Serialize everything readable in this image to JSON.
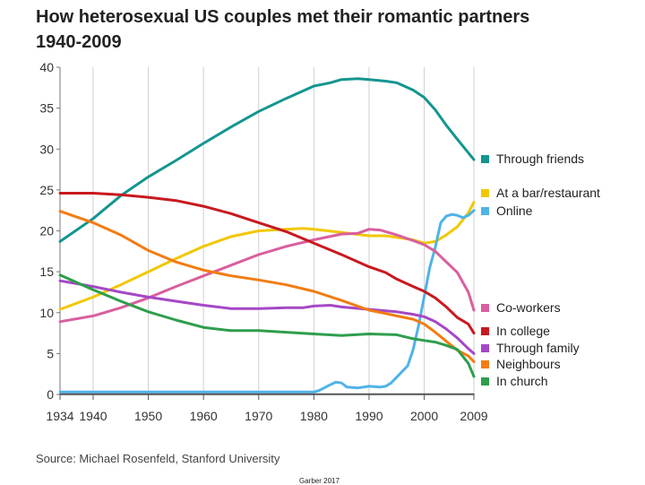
{
  "title": "How heterosexual US couples met their romantic partners",
  "subtitle": "1940-2009",
  "source": "Source: Michael Rosenfeld, Stanford University",
  "footer": "Garber 2017",
  "chart_data": {
    "type": "line",
    "title": "How heterosexual US couples met their romantic partners 1940-2009",
    "xlabel": "",
    "ylabel": "",
    "xlim": [
      1934,
      2009
    ],
    "ylim": [
      0,
      40
    ],
    "x_ticks": [
      1934,
      1940,
      1950,
      1960,
      1970,
      1980,
      1990,
      2000,
      2009
    ],
    "y_ticks": [
      0,
      5,
      10,
      15,
      20,
      25,
      30,
      35,
      40
    ],
    "grid": "vertical",
    "legend": "right, labels at line ends",
    "series": [
      {
        "name": "Through friends",
        "color": "#14958f",
        "points": [
          [
            1934,
            18.7
          ],
          [
            1940,
            21.5
          ],
          [
            1945,
            24.3
          ],
          [
            1950,
            26.6
          ],
          [
            1955,
            28.6
          ],
          [
            1960,
            30.7
          ],
          [
            1965,
            32.7
          ],
          [
            1970,
            34.6
          ],
          [
            1975,
            36.2
          ],
          [
            1980,
            37.7
          ],
          [
            1983,
            38.1
          ],
          [
            1985,
            38.5
          ],
          [
            1988,
            38.6
          ],
          [
            1990,
            38.5
          ],
          [
            1993,
            38.3
          ],
          [
            1995,
            38.1
          ],
          [
            1998,
            37.2
          ],
          [
            2000,
            36.3
          ],
          [
            2002,
            34.8
          ],
          [
            2004,
            32.9
          ],
          [
            2006,
            31.2
          ],
          [
            2009,
            28.7
          ]
        ]
      },
      {
        "name": "At a bar/restaurant",
        "color": "#f2c700",
        "points": [
          [
            1934,
            10.4
          ],
          [
            1940,
            11.9
          ],
          [
            1945,
            13.4
          ],
          [
            1950,
            15.0
          ],
          [
            1955,
            16.6
          ],
          [
            1960,
            18.1
          ],
          [
            1965,
            19.3
          ],
          [
            1970,
            20.0
          ],
          [
            1975,
            20.2
          ],
          [
            1978,
            20.3
          ],
          [
            1980,
            20.2
          ],
          [
            1985,
            19.8
          ],
          [
            1990,
            19.4
          ],
          [
            1993,
            19.4
          ],
          [
            1995,
            19.2
          ],
          [
            1998,
            18.9
          ],
          [
            2000,
            18.5
          ],
          [
            2002,
            18.7
          ],
          [
            2004,
            19.5
          ],
          [
            2006,
            20.5
          ],
          [
            2008,
            22.2
          ],
          [
            2009,
            23.5
          ]
        ]
      },
      {
        "name": "Online",
        "color": "#4fb3e8",
        "points": [
          [
            1934,
            0.3
          ],
          [
            1980,
            0.3
          ],
          [
            1981,
            0.5
          ],
          [
            1983,
            1.2
          ],
          [
            1984,
            1.5
          ],
          [
            1985,
            1.4
          ],
          [
            1986,
            0.9
          ],
          [
            1988,
            0.8
          ],
          [
            1990,
            1.0
          ],
          [
            1992,
            0.9
          ],
          [
            1993,
            1.0
          ],
          [
            1994,
            1.4
          ],
          [
            1996,
            2.8
          ],
          [
            1997,
            3.5
          ],
          [
            1998,
            5.5
          ],
          [
            1999,
            8.5
          ],
          [
            2000,
            12.0
          ],
          [
            2001,
            15.5
          ],
          [
            2002,
            18.0
          ],
          [
            2003,
            21.0
          ],
          [
            2004,
            21.8
          ],
          [
            2005,
            22.0
          ],
          [
            2006,
            21.9
          ],
          [
            2007,
            21.6
          ],
          [
            2008,
            21.9
          ],
          [
            2009,
            22.5
          ]
        ]
      },
      {
        "name": "Co-workers",
        "color": "#d95f9e",
        "points": [
          [
            1934,
            8.9
          ],
          [
            1940,
            9.6
          ],
          [
            1945,
            10.6
          ],
          [
            1950,
            11.8
          ],
          [
            1955,
            13.2
          ],
          [
            1960,
            14.5
          ],
          [
            1965,
            15.8
          ],
          [
            1970,
            17.1
          ],
          [
            1975,
            18.1
          ],
          [
            1980,
            18.9
          ],
          [
            1985,
            19.6
          ],
          [
            1988,
            19.7
          ],
          [
            1990,
            20.2
          ],
          [
            1992,
            20.1
          ],
          [
            1995,
            19.5
          ],
          [
            1998,
            18.8
          ],
          [
            2000,
            18.3
          ],
          [
            2002,
            17.5
          ],
          [
            2004,
            16.2
          ],
          [
            2006,
            14.9
          ],
          [
            2008,
            12.5
          ],
          [
            2009,
            10.3
          ]
        ]
      },
      {
        "name": "In college",
        "color": "#c8191f",
        "points": [
          [
            1934,
            24.6
          ],
          [
            1940,
            24.6
          ],
          [
            1945,
            24.4
          ],
          [
            1950,
            24.1
          ],
          [
            1955,
            23.7
          ],
          [
            1960,
            23.0
          ],
          [
            1965,
            22.1
          ],
          [
            1970,
            21.0
          ],
          [
            1975,
            19.9
          ],
          [
            1980,
            18.5
          ],
          [
            1985,
            17.1
          ],
          [
            1990,
            15.6
          ],
          [
            1993,
            14.9
          ],
          [
            1995,
            14.1
          ],
          [
            1998,
            13.2
          ],
          [
            2000,
            12.6
          ],
          [
            2002,
            11.8
          ],
          [
            2004,
            10.7
          ],
          [
            2006,
            9.4
          ],
          [
            2008,
            8.6
          ],
          [
            2009,
            7.5
          ]
        ]
      },
      {
        "name": "Through family",
        "color": "#a548c5",
        "points": [
          [
            1934,
            13.9
          ],
          [
            1940,
            13.2
          ],
          [
            1945,
            12.5
          ],
          [
            1950,
            11.9
          ],
          [
            1955,
            11.4
          ],
          [
            1960,
            10.9
          ],
          [
            1965,
            10.5
          ],
          [
            1970,
            10.5
          ],
          [
            1975,
            10.6
          ],
          [
            1978,
            10.6
          ],
          [
            1980,
            10.8
          ],
          [
            1983,
            10.9
          ],
          [
            1985,
            10.7
          ],
          [
            1990,
            10.4
          ],
          [
            1995,
            10.1
          ],
          [
            1998,
            9.8
          ],
          [
            2000,
            9.5
          ],
          [
            2002,
            8.9
          ],
          [
            2004,
            8.0
          ],
          [
            2006,
            6.9
          ],
          [
            2008,
            5.6
          ],
          [
            2009,
            5.0
          ]
        ]
      },
      {
        "name": "Neighbours",
        "color": "#f27c12",
        "points": [
          [
            1934,
            22.4
          ],
          [
            1940,
            21.0
          ],
          [
            1945,
            19.5
          ],
          [
            1950,
            17.6
          ],
          [
            1955,
            16.2
          ],
          [
            1960,
            15.2
          ],
          [
            1965,
            14.5
          ],
          [
            1970,
            14.0
          ],
          [
            1975,
            13.4
          ],
          [
            1980,
            12.6
          ],
          [
            1985,
            11.5
          ],
          [
            1990,
            10.3
          ],
          [
            1993,
            9.9
          ],
          [
            1995,
            9.6
          ],
          [
            1998,
            9.2
          ],
          [
            2000,
            8.6
          ],
          [
            2002,
            7.6
          ],
          [
            2004,
            6.5
          ],
          [
            2006,
            5.4
          ],
          [
            2008,
            4.7
          ],
          [
            2009,
            4.0
          ]
        ]
      },
      {
        "name": "In church",
        "color": "#2e9e4c",
        "points": [
          [
            1934,
            14.6
          ],
          [
            1940,
            12.8
          ],
          [
            1945,
            11.4
          ],
          [
            1950,
            10.1
          ],
          [
            1955,
            9.1
          ],
          [
            1960,
            8.2
          ],
          [
            1965,
            7.8
          ],
          [
            1970,
            7.8
          ],
          [
            1975,
            7.6
          ],
          [
            1980,
            7.4
          ],
          [
            1985,
            7.2
          ],
          [
            1990,
            7.4
          ],
          [
            1995,
            7.3
          ],
          [
            1998,
            6.8
          ],
          [
            2000,
            6.6
          ],
          [
            2002,
            6.4
          ],
          [
            2004,
            6.0
          ],
          [
            2006,
            5.5
          ],
          [
            2008,
            3.8
          ],
          [
            2009,
            2.2
          ]
        ]
      },
      {
        "name": "",
        "color": "#555555",
        "points": [
          [
            1934,
            0.05
          ],
          [
            2009,
            0.05
          ]
        ]
      }
    ]
  }
}
